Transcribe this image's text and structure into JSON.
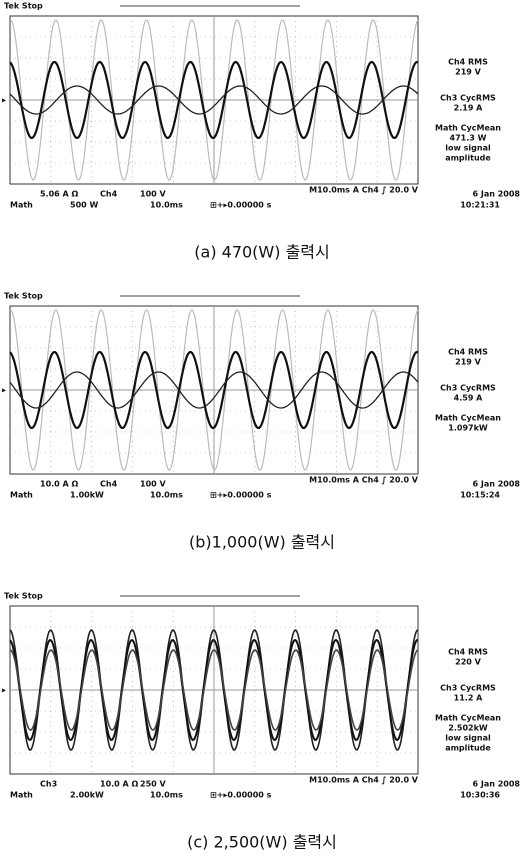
{
  "panels": [
    {
      "tek": "Tek Stop",
      "readouts": [
        "Ch4 RMS",
        "219 V",
        "Ch3 CycRMS",
        "2.19 A",
        "Math CycMean",
        "471.3 W",
        "low signal",
        "amplitude"
      ],
      "row1": [
        "5.06 A Ω",
        "Ch4",
        "100 V"
      ],
      "timebase": "M10.0ms  A  Ch4  ∫  20.0 V",
      "row2": [
        "Math",
        "500 W",
        "10.0ms",
        "⊞+▸0.00000 s"
      ],
      "date": "6 Jan 2008",
      "time": "10:21:31",
      "caption": "(a) 470(W) 출력시"
    },
    {
      "tek": "Tek Stop",
      "readouts": [
        "Ch4 RMS",
        "219 V",
        "Ch3 CycRMS",
        "4.59 A",
        "Math CycMean",
        "1.097kW"
      ],
      "row1": [
        "10.0 A Ω",
        "Ch4",
        "100 V"
      ],
      "timebase": "M10.0ms  A  Ch4  ∫  20.0 V",
      "row2": [
        "Math",
        "1.00kW",
        "10.0ms",
        "⊞+▸0.00000 s"
      ],
      "date": "6 Jan 2008",
      "time": "10:15:24",
      "caption": "(b)1,000(W) 출력시"
    },
    {
      "tek": "Tek Stop",
      "readouts": [
        "Ch4 RMS",
        "220 V",
        "Ch3 CycRMS",
        "11.2 A",
        "Math CycMean",
        "2.502kW",
        "low signal",
        "amplitude"
      ],
      "row1": [
        "Ch3",
        "10.0 A Ω",
        "250 V"
      ],
      "timebase": "M10.0ms  A  Ch4  ∫  20.0 V",
      "row2": [
        "Math",
        "2.00kW",
        "10.0ms",
        "⊞+▸0.00000 s"
      ],
      "date": "6 Jan 2008",
      "time": "10:30:36",
      "caption": "(c) 2,500(W) 출력시"
    }
  ]
}
